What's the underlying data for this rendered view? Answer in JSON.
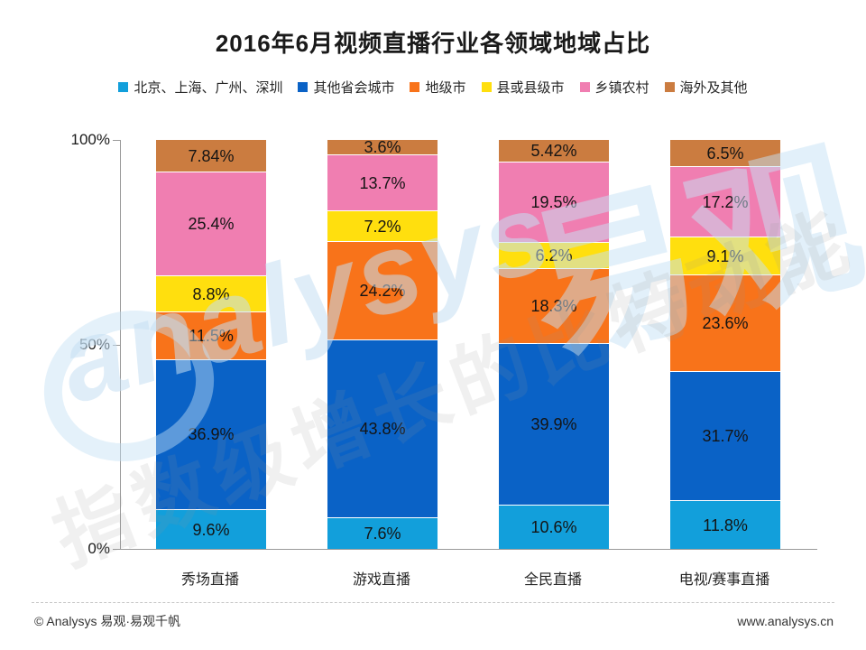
{
  "title": "2016年6月视频直播行业各领域地域占比",
  "chart_data": {
    "type": "bar",
    "stacked": true,
    "percent_stacked": true,
    "title": "2016年6月视频直播行业各领域地域占比",
    "categories": [
      "秀场直播",
      "游戏直播",
      "全民直播",
      "电视/赛事直播"
    ],
    "series": [
      {
        "name": "北京、上海、广州、深圳",
        "color": "#129FDB",
        "values": [
          9.6,
          7.6,
          10.6,
          11.8
        ],
        "labels": [
          "9.6%",
          "7.6%",
          "10.6%",
          "11.8%"
        ]
      },
      {
        "name": "其他省会城市",
        "color": "#0A62C6",
        "values": [
          36.9,
          43.8,
          39.9,
          31.7
        ],
        "labels": [
          "36.9%",
          "43.8%",
          "39.9%",
          "31.7%"
        ]
      },
      {
        "name": "地级市",
        "color": "#F8731A",
        "values": [
          11.5,
          24.2,
          18.3,
          23.6
        ],
        "labels": [
          "11.5%",
          "24.2%",
          "18.3%",
          "23.6%"
        ]
      },
      {
        "name": "县或县级市",
        "color": "#FFDF0E",
        "values": [
          8.8,
          7.2,
          6.2,
          9.1
        ],
        "labels": [
          "8.8%",
          "7.2%",
          "6.2%",
          "9.1%"
        ]
      },
      {
        "name": "乡镇农村",
        "color": "#F07EB1",
        "values": [
          25.4,
          13.7,
          19.5,
          17.2
        ],
        "labels": [
          "25.4%",
          "13.7%",
          "19.5%",
          "17.2%"
        ]
      },
      {
        "name": "海外及其他",
        "color": "#CB7C40",
        "values": [
          7.84,
          3.6,
          5.42,
          6.5
        ],
        "labels": [
          "7.84%",
          "3.6%",
          "5.42%",
          "6.5%"
        ]
      }
    ],
    "yticks": [
      "100%",
      "50%",
      "0%"
    ],
    "ylim": [
      0,
      100
    ],
    "grid": false,
    "legend_position": "top"
  },
  "footer": {
    "left": "© Analysys 易观·易观千帆",
    "right": "www.analysys.cn"
  },
  "watermark": {
    "script_text": "analysys",
    "big_text": "易观",
    "slogan_text": "指数级增长的比特动能"
  }
}
